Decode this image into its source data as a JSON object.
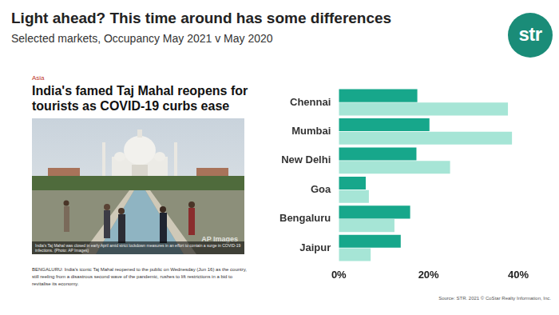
{
  "header": {
    "title": "Light ahead? This time around has some differences",
    "subtitle": "Selected markets, Occupancy May 2021 v May 2020",
    "logo": "str"
  },
  "article": {
    "section": "Asia",
    "headline": "India's famed Taj Mahal reopens for tourists as COVID-19 curbs ease",
    "photo_caption": "India's Taj Mahal was closed in early April amid strict lockdown measures in an effort to contain a surge in COVID-19 infections. (Photo: AP Images)",
    "photo_credit": "AP Images",
    "body": "BENGALURU: India's iconic Taj Mahal reopened to the public on Wednesday (Jun 16) as the country, still reeling from a disastrous second wave of the pandemic, rushes to lift restrictions in a bid to revitalise its economy."
  },
  "source": "Source: STR. 2021 © CoStar Realty Information, Inc.",
  "chart_data": {
    "type": "bar",
    "orientation": "horizontal",
    "grid": false,
    "categories": [
      "Chennai",
      "Mumbai",
      "New Delhi",
      "Goa",
      "Bengaluru",
      "Jaipur"
    ],
    "series": [
      {
        "color": "#17a78b",
        "values": [
          17.5,
          20.2,
          17.3,
          6.0,
          15.9,
          13.8
        ]
      },
      {
        "color": "#a6e5d6",
        "values": [
          37.7,
          38.6,
          24.8,
          6.7,
          12.4,
          7.1
        ]
      }
    ],
    "xlim": [
      0,
      40
    ],
    "xticks": [
      {
        "value": 0,
        "label": "0%"
      },
      {
        "value": 20,
        "label": "20%"
      },
      {
        "value": 40,
        "label": "40%"
      }
    ]
  }
}
